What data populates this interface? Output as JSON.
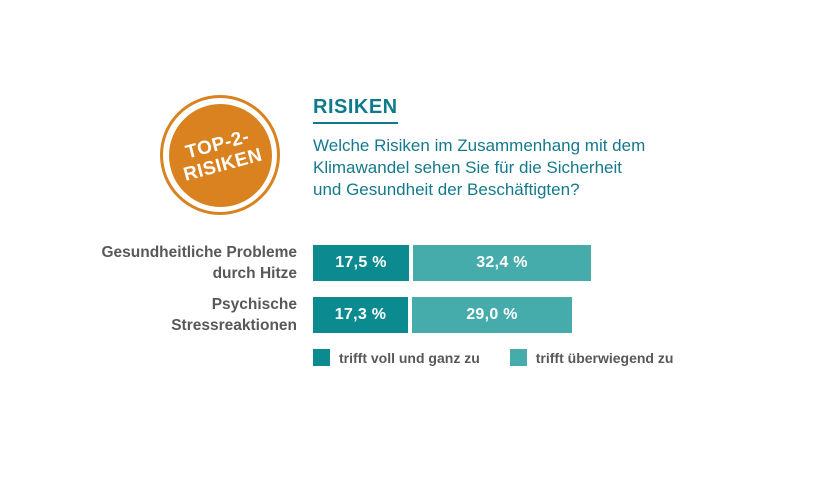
{
  "badge": {
    "line1": "TOP-2-",
    "line2": "RISIKEN",
    "background_color": "#D9821F"
  },
  "header": {
    "title": "RISIKEN",
    "title_color": "#0F7A8A",
    "question_lines": [
      "Welche Risiken im Zusammenhang mit dem",
      "Klimawandel sehen Sie für die Sicherheit",
      "und Gesundheit der Beschäftigten?"
    ]
  },
  "chart_data": {
    "type": "bar",
    "orientation": "horizontal",
    "stacked": true,
    "title": "RISIKEN",
    "categories": [
      "Gesundheitliche Probleme durch Hitze",
      "Psychische Stressreaktionen"
    ],
    "category_label_lines": [
      [
        "Gesundheitliche Probleme",
        "durch Hitze"
      ],
      [
        "Psychische",
        "Stressreaktionen"
      ]
    ],
    "series": [
      {
        "name": "trifft voll und ganz zu",
        "color": "#0B8A8F",
        "values": [
          17.5,
          17.3
        ]
      },
      {
        "name": "trifft überwiegend zu",
        "color": "#46ABAB",
        "values": [
          32.4,
          29.0
        ]
      }
    ],
    "value_labels": [
      [
        "17,5 %",
        "32,4 %"
      ],
      [
        "17,3 %",
        "29,0 %"
      ]
    ],
    "xlim": [
      0,
      50
    ],
    "grid": false,
    "legend_position": "bottom"
  }
}
